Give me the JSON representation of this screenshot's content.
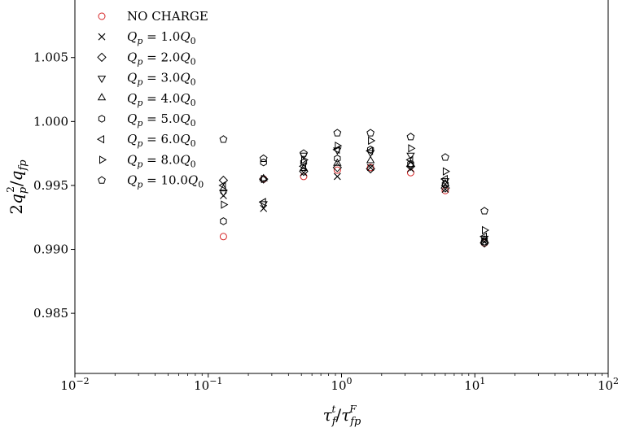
{
  "chart_data": {
    "type": "scatter",
    "title": "",
    "xlabel": "τ_f^t/τ_fp^F",
    "ylabel": "2q_p^2/q_fp",
    "x_scale": "log",
    "xlim": [
      0.01,
      100
    ],
    "ylim": [
      0.9803,
      1.0095
    ],
    "x_ticks": [
      {
        "value": 0.01,
        "base": "10",
        "exp": "−2"
      },
      {
        "value": 0.1,
        "base": "10",
        "exp": "−1"
      },
      {
        "value": 1,
        "base": "10",
        "exp": "0"
      },
      {
        "value": 10,
        "base": "10",
        "exp": "1"
      },
      {
        "value": 100,
        "base": "10",
        "exp": "2"
      }
    ],
    "y_ticks": [
      {
        "value": 0.985,
        "label": "0.985"
      },
      {
        "value": 0.99,
        "label": "0.990"
      },
      {
        "value": 0.995,
        "label": "0.995"
      },
      {
        "value": 1.0,
        "label": "1.000"
      },
      {
        "value": 1.005,
        "label": "1.005"
      }
    ],
    "grid": false,
    "legend_position": "top-left",
    "x": [
      0.13,
      0.26,
      0.52,
      0.93,
      1.65,
      3.3,
      6.0,
      11.8
    ],
    "series": [
      {
        "name": "NO CHARGE",
        "marker": "circle",
        "color": "#d62728",
        "values": [
          0.991,
          0.9955,
          0.9957,
          0.9962,
          0.9964,
          0.996,
          0.9946,
          0.9905
        ]
      },
      {
        "name": "Q_p = 1.0Q_0",
        "marker": "x",
        "color": "#000000",
        "values": [
          0.9942,
          0.9932,
          0.996,
          0.9957,
          0.9964,
          0.9963,
          0.9947,
          0.9906
        ]
      },
      {
        "name": "Q_p = 2.0Q_0",
        "marker": "diamond",
        "color": "#000000",
        "values": [
          0.9954,
          0.9955,
          0.9961,
          0.9964,
          0.9963,
          0.9965,
          0.9948,
          0.9905
        ]
      },
      {
        "name": "Q_p = 3.0Q_0",
        "marker": "triangle-down",
        "color": "#000000",
        "values": [
          0.9945,
          0.9936,
          0.9974,
          0.9978,
          0.9976,
          0.9974,
          0.9954,
          0.9909
        ]
      },
      {
        "name": "Q_p = 4.0Q_0",
        "marker": "triangle-up",
        "color": "#000000",
        "values": [
          0.9947,
          0.9955,
          0.9963,
          0.9967,
          0.9969,
          0.9966,
          0.9951,
          0.9907
        ]
      },
      {
        "name": "Q_p = 5.0Q_0",
        "marker": "hexagon",
        "color": "#000000",
        "values": [
          0.9922,
          0.9968,
          0.9968,
          0.9971,
          0.9978,
          0.9967,
          0.9951,
          0.9906
        ]
      },
      {
        "name": "Q_p = 6.0Q_0",
        "marker": "triangle-left",
        "color": "#000000",
        "values": [
          0.995,
          0.9937,
          0.9965,
          0.9978,
          0.9977,
          0.997,
          0.9955,
          0.991
        ]
      },
      {
        "name": "Q_p = 8.0Q_0",
        "marker": "triangle-right",
        "color": "#000000",
        "values": [
          0.9935,
          0.9955,
          0.997,
          0.9981,
          0.9985,
          0.9979,
          0.9961,
          0.9915
        ]
      },
      {
        "name": "Q_p = 10.0Q_0",
        "marker": "pentagon",
        "color": "#000000",
        "values": [
          0.9986,
          0.9971,
          0.9975,
          0.9991,
          0.9991,
          0.9988,
          0.9972,
          0.993
        ]
      }
    ]
  }
}
